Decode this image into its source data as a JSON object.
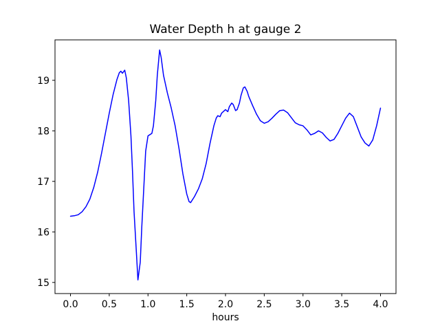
{
  "figure": {
    "background": "#ffffff",
    "frame_color": "#000000"
  },
  "chart_data": {
    "type": "line",
    "title": "Water Depth h at gauge 2",
    "xlabel": "hours",
    "ylabel": "",
    "grid": false,
    "legend": "none",
    "xlim": [
      -0.2,
      4.2
    ],
    "ylim": [
      14.78,
      19.8
    ],
    "xtick_labels": [
      "0.0",
      "0.5",
      "1.0",
      "1.5",
      "2.0",
      "2.5",
      "3.0",
      "3.5",
      "4.0"
    ],
    "ytick_labels": [
      "15",
      "16",
      "17",
      "18",
      "19"
    ],
    "series": [
      {
        "name": "water depth h",
        "color": "#0000ff",
        "line_width": 1.5,
        "x": [
          0.0,
          0.05,
          0.1,
          0.15,
          0.2,
          0.25,
          0.3,
          0.35,
          0.4,
          0.45,
          0.5,
          0.55,
          0.6,
          0.63,
          0.65,
          0.67,
          0.7,
          0.72,
          0.75,
          0.78,
          0.8,
          0.82,
          0.85,
          0.87,
          0.9,
          0.92,
          0.95,
          0.97,
          1.0,
          1.02,
          1.05,
          1.07,
          1.1,
          1.12,
          1.15,
          1.17,
          1.2,
          1.25,
          1.3,
          1.35,
          1.4,
          1.45,
          1.5,
          1.53,
          1.55,
          1.6,
          1.65,
          1.7,
          1.75,
          1.8,
          1.85,
          1.88,
          1.9,
          1.93,
          1.95,
          2.0,
          2.03,
          2.05,
          2.08,
          2.1,
          2.13,
          2.15,
          2.18,
          2.2,
          2.23,
          2.25,
          2.28,
          2.3,
          2.35,
          2.4,
          2.45,
          2.5,
          2.55,
          2.6,
          2.65,
          2.7,
          2.75,
          2.8,
          2.85,
          2.9,
          2.95,
          3.0,
          3.05,
          3.1,
          3.15,
          3.2,
          3.25,
          3.3,
          3.35,
          3.4,
          3.45,
          3.5,
          3.55,
          3.6,
          3.65,
          3.7,
          3.75,
          3.8,
          3.85,
          3.9,
          3.95,
          4.0
        ],
        "y": [
          16.31,
          16.32,
          16.34,
          16.4,
          16.5,
          16.65,
          16.88,
          17.18,
          17.55,
          17.95,
          18.35,
          18.72,
          19.02,
          19.15,
          19.18,
          19.14,
          19.2,
          19.05,
          18.6,
          17.9,
          17.2,
          16.4,
          15.6,
          15.05,
          15.4,
          16.1,
          17.0,
          17.6,
          17.9,
          17.92,
          17.95,
          18.1,
          18.6,
          19.1,
          19.6,
          19.45,
          19.1,
          18.75,
          18.45,
          18.1,
          17.65,
          17.15,
          16.75,
          16.6,
          16.58,
          16.7,
          16.85,
          17.05,
          17.35,
          17.75,
          18.1,
          18.25,
          18.3,
          18.28,
          18.35,
          18.42,
          18.38,
          18.48,
          18.55,
          18.52,
          18.4,
          18.42,
          18.55,
          18.7,
          18.85,
          18.87,
          18.78,
          18.68,
          18.5,
          18.33,
          18.2,
          18.15,
          18.18,
          18.25,
          18.33,
          18.4,
          18.41,
          18.36,
          18.26,
          18.16,
          18.12,
          18.1,
          18.02,
          17.92,
          17.95,
          18.0,
          17.96,
          17.87,
          17.8,
          17.83,
          17.95,
          18.1,
          18.25,
          18.35,
          18.28,
          18.08,
          17.88,
          17.76,
          17.7,
          17.82,
          18.1,
          18.45
        ]
      }
    ]
  }
}
